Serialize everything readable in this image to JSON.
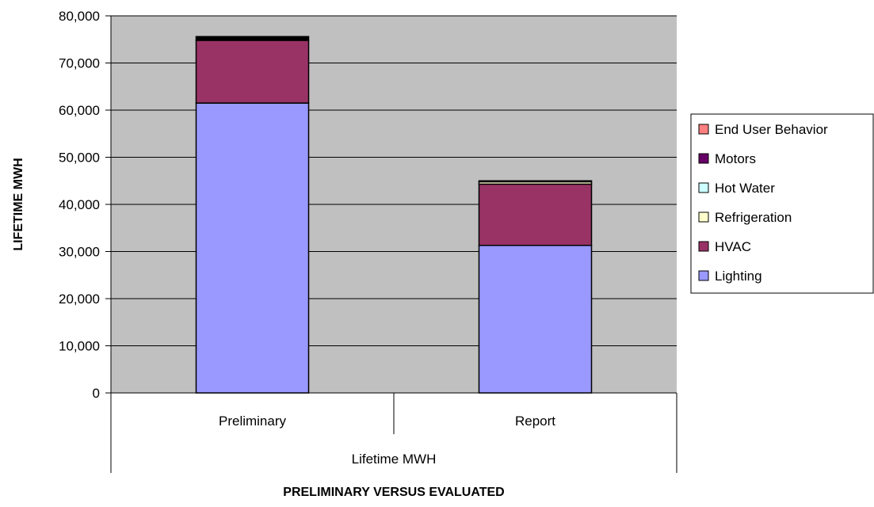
{
  "chart_data": {
    "type": "bar",
    "stacked": true,
    "categories": [
      "Preliminary",
      "Report"
    ],
    "group_label": "Lifetime MWH",
    "xlabel": "PRELIMINARY VERSUS EVALUATED",
    "ylabel": "LIFETIME MWH",
    "ylim": [
      0,
      80000
    ],
    "yticks": [
      0,
      10000,
      20000,
      30000,
      40000,
      50000,
      60000,
      70000,
      80000
    ],
    "ytick_labels": [
      "0",
      "10,000",
      "20,000",
      "30,000",
      "40,000",
      "50,000",
      "60,000",
      "70,000",
      "80,000"
    ],
    "grid": true,
    "plot_background": "#c0c0c0",
    "legend_position": "right",
    "series": [
      {
        "name": "Lighting",
        "color": "#9999ff",
        "values": [
          61500,
          31300
        ]
      },
      {
        "name": "HVAC",
        "color": "#993366",
        "values": [
          13300,
          13000
        ]
      },
      {
        "name": "Refrigeration",
        "color": "#ffffcc",
        "values": [
          0,
          500
        ]
      },
      {
        "name": "Hot Water",
        "color": "#ccffff",
        "values": [
          0,
          0
        ]
      },
      {
        "name": "Motors",
        "color": "#660066",
        "values": [
          0,
          200
        ]
      },
      {
        "name": "End User Behavior",
        "color": "#ff8080",
        "values": [
          0,
          0
        ]
      }
    ],
    "extra_layers": [
      {
        "color": "#000000",
        "values": [
          800,
          0
        ]
      }
    ]
  }
}
